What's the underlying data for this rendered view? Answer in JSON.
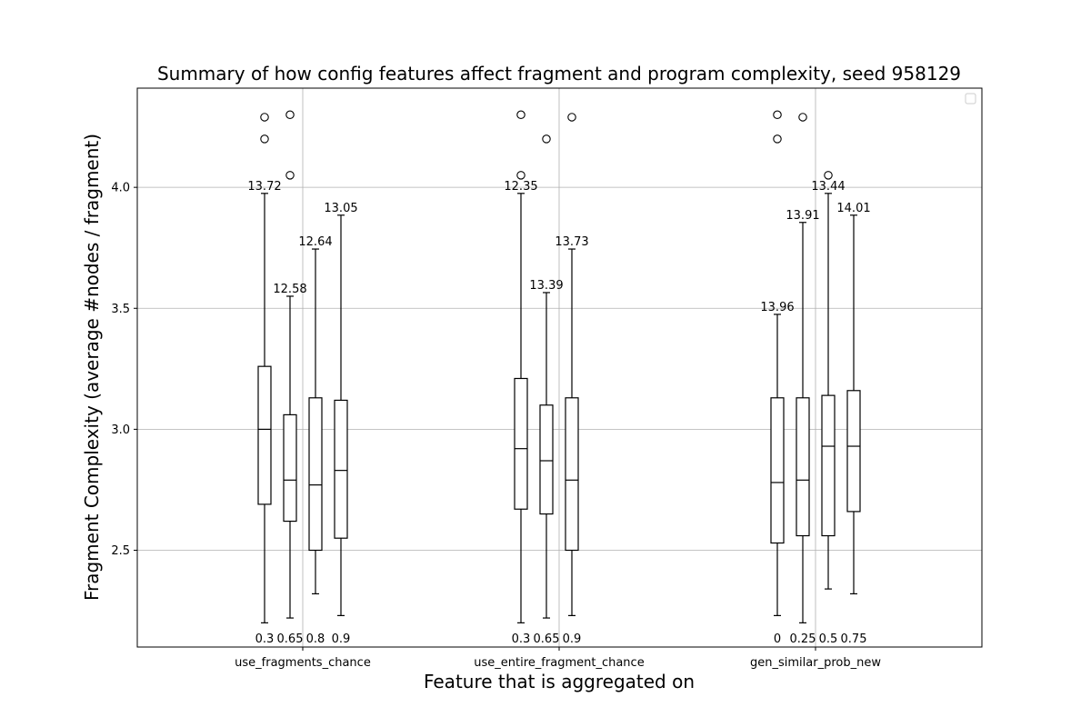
{
  "chart_data": {
    "type": "box",
    "title": "Summary of how config features affect fragment and program complexity, seed 958129",
    "xlabel": "Feature that is aggregated on",
    "ylabel": "Fragment Complexity (average #nodes / fragment)",
    "ylim": [
      2.1,
      4.41
    ],
    "yticks": [
      2.5,
      3.0,
      3.5,
      4.0
    ],
    "ytick_labels": [
      "2.5",
      "3.0",
      "3.5",
      "4.0"
    ],
    "grid": true,
    "legend": "top-right (empty)",
    "groups": [
      {
        "feature": "use_fragments_chance",
        "boxes": [
          {
            "label": "0.3",
            "whisker_low": 2.2,
            "q1": 2.69,
            "median": 3.0,
            "q3": 3.26,
            "whisker_high": 3.975,
            "top_label": "13.72",
            "outliers": [
              4.29,
              4.2
            ]
          },
          {
            "label": "0.65",
            "whisker_low": 2.22,
            "q1": 2.62,
            "median": 2.79,
            "q3": 3.06,
            "whisker_high": 3.55,
            "top_label": "12.58",
            "outliers": [
              4.3,
              4.05
            ]
          },
          {
            "label": "0.8",
            "whisker_low": 2.32,
            "q1": 2.5,
            "median": 2.77,
            "q3": 3.13,
            "whisker_high": 3.745,
            "top_label": "12.64",
            "outliers": []
          },
          {
            "label": "0.9",
            "whisker_low": 2.23,
            "q1": 2.55,
            "median": 2.83,
            "q3": 3.12,
            "whisker_high": 3.885,
            "top_label": "13.05",
            "outliers": []
          }
        ]
      },
      {
        "feature": "use_entire_fragment_chance",
        "boxes": [
          {
            "label": "0.3",
            "whisker_low": 2.2,
            "q1": 2.67,
            "median": 2.92,
            "q3": 3.21,
            "whisker_high": 3.975,
            "top_label": "12.35",
            "outliers": [
              4.3,
              4.05
            ]
          },
          {
            "label": "0.65",
            "whisker_low": 2.22,
            "q1": 2.65,
            "median": 2.87,
            "q3": 3.1,
            "whisker_high": 3.565,
            "top_label": "13.39",
            "outliers": [
              4.2
            ]
          },
          {
            "label": "0.9",
            "whisker_low": 2.23,
            "q1": 2.5,
            "median": 2.79,
            "q3": 3.13,
            "whisker_high": 3.745,
            "top_label": "13.73",
            "outliers": [
              4.29
            ]
          }
        ]
      },
      {
        "feature": "gen_similar_prob_new",
        "boxes": [
          {
            "label": "0",
            "whisker_low": 2.23,
            "q1": 2.53,
            "median": 2.78,
            "q3": 3.13,
            "whisker_high": 3.475,
            "top_label": "13.96",
            "outliers": [
              4.3,
              4.2
            ]
          },
          {
            "label": "0.25",
            "whisker_low": 2.2,
            "q1": 2.56,
            "median": 2.79,
            "q3": 3.13,
            "whisker_high": 3.855,
            "top_label": "13.91",
            "outliers": [
              4.29
            ]
          },
          {
            "label": "0.5",
            "whisker_low": 2.34,
            "q1": 2.56,
            "median": 2.93,
            "q3": 3.14,
            "whisker_high": 3.975,
            "top_label": "13.44",
            "outliers": [
              4.05
            ]
          },
          {
            "label": "0.75",
            "whisker_low": 2.32,
            "q1": 2.66,
            "median": 2.93,
            "q3": 3.16,
            "whisker_high": 3.885,
            "top_label": "14.01",
            "outliers": []
          }
        ]
      }
    ]
  }
}
